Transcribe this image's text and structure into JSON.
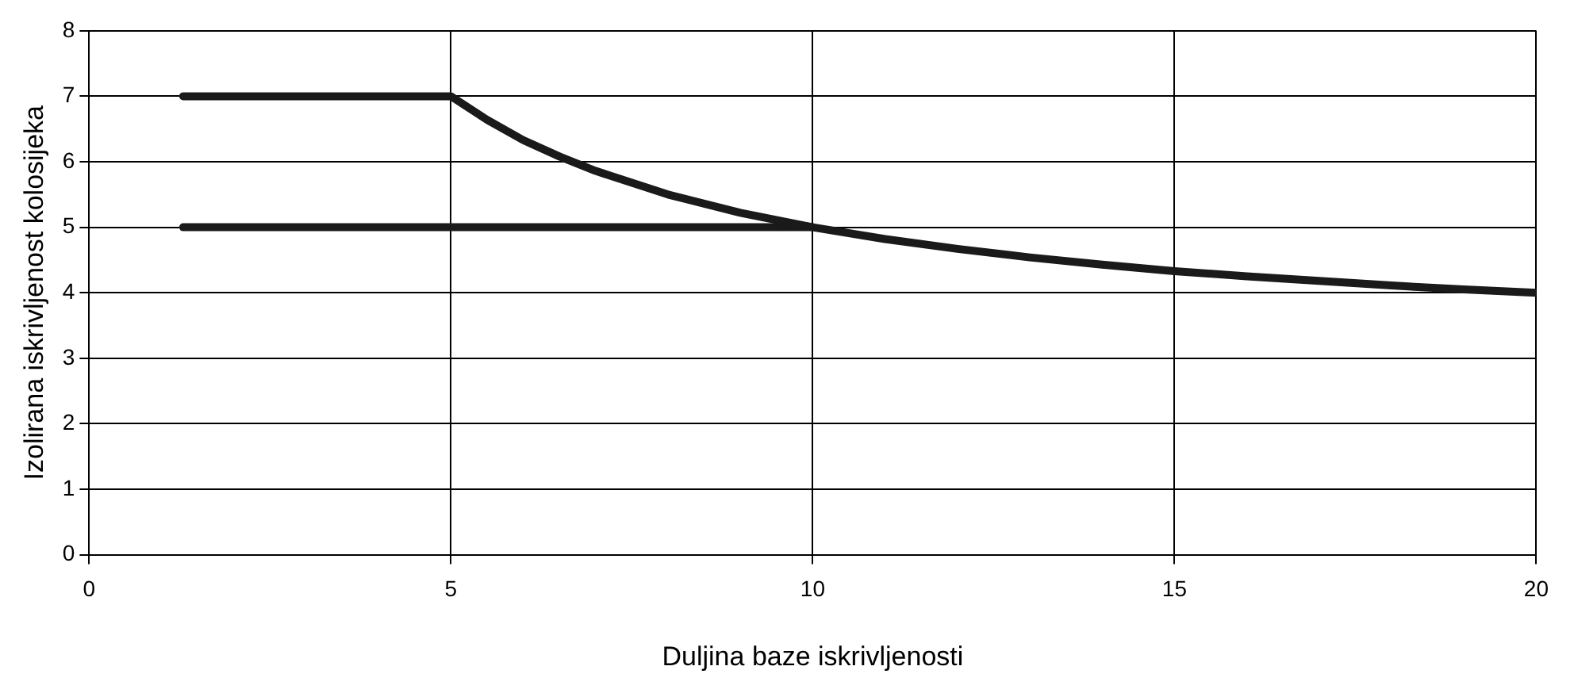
{
  "chart_data": {
    "type": "line",
    "xlabel": "Duljina baze iskrivljenosti",
    "ylabel": "Izolirana iskrivljenost kolosijeka",
    "xlim": [
      0,
      20
    ],
    "xticks": [
      0,
      5,
      10,
      15,
      20
    ],
    "ylim": [
      0,
      8
    ],
    "yticks": [
      0,
      1,
      2,
      3,
      4,
      5,
      6,
      7,
      8
    ],
    "grid": true,
    "legend": false,
    "marker": "none",
    "line_style": "solid",
    "series": [
      {
        "color": "#1a1a1a",
        "x": [
          1.3,
          5,
          5.5,
          6,
          6.5,
          7,
          8,
          9,
          10,
          11,
          12,
          13,
          14,
          15,
          16,
          17,
          18,
          19,
          20
        ],
        "values": [
          7,
          7,
          6.64,
          6.33,
          6.08,
          5.86,
          5.5,
          5.22,
          5,
          4.82,
          4.67,
          4.54,
          4.43,
          4.33,
          4.25,
          4.18,
          4.11,
          4.05,
          4
        ]
      },
      {
        "color": "#1a1a1a",
        "x": [
          1.3,
          10
        ],
        "values": [
          5,
          5
        ]
      }
    ]
  }
}
